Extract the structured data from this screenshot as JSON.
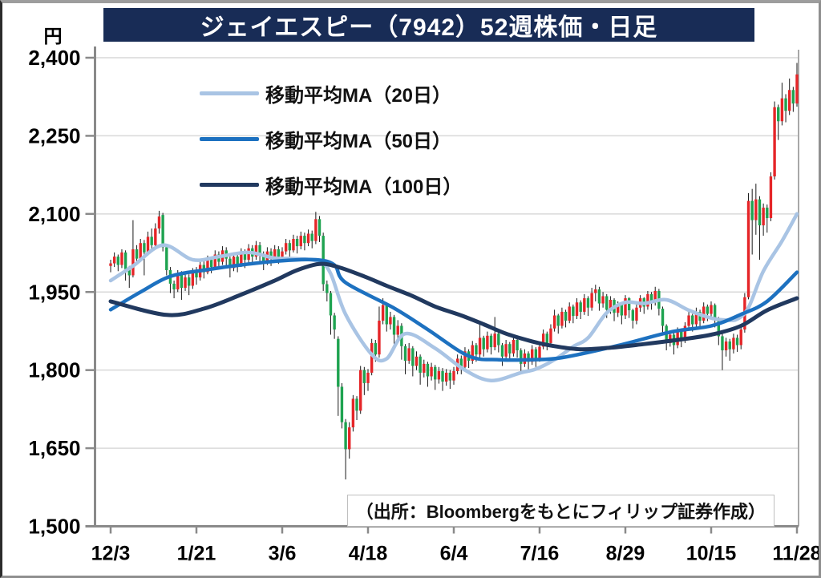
{
  "title": "ジェイエスピー（7942）52週株価・日足",
  "y_axis": {
    "unit": "円",
    "ticks": [
      "2,400",
      "2,250",
      "2,100",
      "1,950",
      "1,800",
      "1,650",
      "1,500"
    ],
    "tick_values": [
      2400,
      2250,
      2100,
      1950,
      1800,
      1650,
      1500
    ]
  },
  "x_axis": {
    "tick_labels": [
      "12/3",
      "1/21",
      "3/6",
      "4/18",
      "6/4",
      "7/16",
      "8/29",
      "10/15",
      "11/28"
    ]
  },
  "source": "（出所：Bloombergをもとにフィリップ証券作成）",
  "colors": {
    "title_bg": "#182c56",
    "candle_up": "#e52528",
    "candle_down": "#1ea350",
    "wick": "#1a1a1a",
    "grid": "#d9d9d9",
    "axis": "#8a8a8a",
    "tick_text": "#000000"
  },
  "chart_data": {
    "type": "candlestick",
    "title": "ジェイエスピー（7942）52週株価・日足",
    "ylabel": "円",
    "ylim": [
      1500,
      2400
    ],
    "grid": true,
    "legend_position": "top-left",
    "x_tick_labels": [
      "12/3",
      "1/21",
      "3/6",
      "4/18",
      "6/4",
      "7/16",
      "8/29",
      "10/15",
      "11/28"
    ],
    "x_tick_day_indices": [
      0,
      23,
      46,
      69,
      92,
      115,
      138,
      161,
      184
    ],
    "candle_convention": "red = up (yang), green = down (yin)",
    "candles_format": [
      "open",
      "close",
      "low",
      "high"
    ],
    "candles": [
      [
        2000,
        2005,
        1988,
        2012
      ],
      [
        2005,
        2018,
        1998,
        2026
      ],
      [
        2018,
        2002,
        1990,
        2022
      ],
      [
        2002,
        2026,
        1996,
        2032
      ],
      [
        2026,
        1994,
        1972,
        2030
      ],
      [
        1994,
        1982,
        1958,
        2000
      ],
      [
        1982,
        2032,
        1978,
        2088
      ],
      [
        2032,
        2014,
        2002,
        2040
      ],
      [
        2014,
        2044,
        2008,
        2052
      ],
      [
        2044,
        2026,
        1982,
        2050
      ],
      [
        2026,
        2056,
        2020,
        2066
      ],
      [
        2056,
        2040,
        2028,
        2072
      ],
      [
        2040,
        2072,
        2034,
        2082
      ],
      [
        2072,
        2095,
        2062,
        2106
      ],
      [
        2098,
        2036,
        2028,
        2102
      ],
      [
        2036,
        1992,
        1982,
        2042
      ],
      [
        1992,
        1966,
        1948,
        1998
      ],
      [
        1966,
        1955,
        1938,
        1972
      ],
      [
        1955,
        1985,
        1950,
        1992
      ],
      [
        1985,
        1958,
        1935,
        1990
      ],
      [
        1958,
        1978,
        1952,
        1986
      ],
      [
        1978,
        1962,
        1944,
        1984
      ],
      [
        1962,
        1990,
        1956,
        1996
      ],
      [
        1990,
        1978,
        1964,
        1998
      ],
      [
        1978,
        2002,
        1972,
        2008
      ],
      [
        2002,
        1988,
        1976,
        2010
      ],
      [
        1988,
        2012,
        1984,
        2020
      ],
      [
        2012,
        1998,
        1986,
        2018
      ],
      [
        1998,
        2022,
        1992,
        2030
      ],
      [
        2022,
        2008,
        1994,
        2028
      ],
      [
        2008,
        2030,
        2002,
        2038
      ],
      [
        2030,
        2014,
        2000,
        2036
      ],
      [
        2014,
        1996,
        1978,
        2018
      ],
      [
        1996,
        2018,
        1990,
        2026
      ],
      [
        2018,
        2004,
        1988,
        2022
      ],
      [
        2004,
        2026,
        1998,
        2034
      ],
      [
        2026,
        2012,
        1996,
        2032
      ],
      [
        2012,
        2034,
        2006,
        2042
      ],
      [
        2034,
        2018,
        2004,
        2040
      ],
      [
        2018,
        2040,
        2012,
        2048
      ],
      [
        2040,
        2022,
        2008,
        2046
      ],
      [
        2022,
        2008,
        1992,
        2028
      ],
      [
        2008,
        2028,
        2002,
        2036
      ],
      [
        2028,
        2014,
        2000,
        2034
      ],
      [
        2014,
        2032,
        2008,
        2040
      ],
      [
        2032,
        2018,
        2004,
        2038
      ],
      [
        2018,
        2028,
        2010,
        2036
      ],
      [
        2028,
        2044,
        2022,
        2052
      ],
      [
        2044,
        2030,
        2018,
        2050
      ],
      [
        2030,
        2052,
        2026,
        2060
      ],
      [
        2052,
        2038,
        2024,
        2058
      ],
      [
        2038,
        2058,
        2032,
        2066
      ],
      [
        2058,
        2044,
        2030,
        2064
      ],
      [
        2044,
        2062,
        2038,
        2070
      ],
      [
        2062,
        2048,
        2034,
        2068
      ],
      [
        2048,
        2090,
        2042,
        2104
      ],
      [
        2090,
        2058,
        2046,
        2096
      ],
      [
        2058,
        1965,
        1952,
        2064
      ],
      [
        1965,
        1948,
        1932,
        1972
      ],
      [
        1948,
        1905,
        1868,
        1952
      ],
      [
        1905,
        1878,
        1860,
        1910
      ],
      [
        1860,
        1768,
        1712,
        1865
      ],
      [
        1768,
        1700,
        1688,
        1775
      ],
      [
        1700,
        1648,
        1590,
        1706
      ],
      [
        1648,
        1690,
        1630,
        1700
      ],
      [
        1690,
        1745,
        1682,
        1752
      ],
      [
        1745,
        1722,
        1704,
        1750
      ],
      [
        1722,
        1800,
        1716,
        1808
      ],
      [
        1800,
        1775,
        1752,
        1806
      ],
      [
        1775,
        1795,
        1760,
        1802
      ],
      [
        1795,
        1852,
        1790,
        1860
      ],
      [
        1852,
        1830,
        1816,
        1858
      ],
      [
        1830,
        1895,
        1824,
        1922
      ],
      [
        1895,
        1925,
        1888,
        1938
      ],
      [
        1925,
        1888,
        1874,
        1930
      ],
      [
        1888,
        1902,
        1878,
        1912
      ],
      [
        1902,
        1868,
        1848,
        1906
      ],
      [
        1868,
        1885,
        1858,
        1896
      ],
      [
        1885,
        1846,
        1820,
        1890
      ],
      [
        1846,
        1818,
        1792,
        1850
      ],
      [
        1818,
        1842,
        1812,
        1852
      ],
      [
        1842,
        1808,
        1788,
        1846
      ],
      [
        1808,
        1826,
        1800,
        1836
      ],
      [
        1826,
        1795,
        1772,
        1830
      ],
      [
        1795,
        1812,
        1786,
        1820
      ],
      [
        1812,
        1788,
        1768,
        1816
      ],
      [
        1788,
        1806,
        1780,
        1814
      ],
      [
        1806,
        1782,
        1762,
        1810
      ],
      [
        1782,
        1798,
        1774,
        1806
      ],
      [
        1798,
        1778,
        1760,
        1804
      ],
      [
        1778,
        1795,
        1770,
        1802
      ],
      [
        1795,
        1780,
        1764,
        1800
      ],
      [
        1780,
        1798,
        1772,
        1806
      ],
      [
        1798,
        1822,
        1792,
        1830
      ],
      [
        1822,
        1806,
        1792,
        1828
      ],
      [
        1806,
        1836,
        1800,
        1844
      ],
      [
        1836,
        1818,
        1804,
        1840
      ],
      [
        1818,
        1848,
        1812,
        1856
      ],
      [
        1848,
        1830,
        1816,
        1852
      ],
      [
        1830,
        1862,
        1824,
        1890
      ],
      [
        1862,
        1840,
        1826,
        1866
      ],
      [
        1840,
        1866,
        1834,
        1874
      ],
      [
        1866,
        1844,
        1830,
        1870
      ],
      [
        1844,
        1870,
        1838,
        1902
      ],
      [
        1870,
        1848,
        1834,
        1874
      ],
      [
        1848,
        1826,
        1808,
        1852
      ],
      [
        1826,
        1850,
        1820,
        1858
      ],
      [
        1850,
        1832,
        1818,
        1854
      ],
      [
        1832,
        1858,
        1826,
        1866
      ],
      [
        1858,
        1838,
        1824,
        1862
      ],
      [
        1838,
        1812,
        1796,
        1842
      ],
      [
        1812,
        1832,
        1806,
        1840
      ],
      [
        1832,
        1816,
        1800,
        1836
      ],
      [
        1816,
        1840,
        1810,
        1848
      ],
      [
        1840,
        1822,
        1806,
        1844
      ],
      [
        1822,
        1845,
        1816,
        1852
      ],
      [
        1845,
        1870,
        1840,
        1878
      ],
      [
        1870,
        1852,
        1838,
        1874
      ],
      [
        1852,
        1880,
        1846,
        1888
      ],
      [
        1880,
        1905,
        1874,
        1916
      ],
      [
        1905,
        1885,
        1870,
        1908
      ],
      [
        1885,
        1912,
        1880,
        1920
      ],
      [
        1912,
        1895,
        1882,
        1916
      ],
      [
        1895,
        1922,
        1890,
        1930
      ],
      [
        1922,
        1904,
        1890,
        1926
      ],
      [
        1904,
        1930,
        1898,
        1938
      ],
      [
        1930,
        1912,
        1898,
        1934
      ],
      [
        1912,
        1938,
        1906,
        1946
      ],
      [
        1938,
        1920,
        1904,
        1942
      ],
      [
        1920,
        1948,
        1914,
        1958
      ],
      [
        1948,
        1955,
        1932,
        1964
      ],
      [
        1955,
        1928,
        1914,
        1960
      ],
      [
        1928,
        1942,
        1920,
        1950
      ],
      [
        1942,
        1916,
        1900,
        1946
      ],
      [
        1916,
        1935,
        1908,
        1942
      ],
      [
        1935,
        1910,
        1894,
        1938
      ],
      [
        1910,
        1925,
        1902,
        1932
      ],
      [
        1925,
        1905,
        1888,
        1928
      ],
      [
        1905,
        1938,
        1898,
        1944
      ],
      [
        1938,
        1915,
        1900,
        1940
      ],
      [
        1915,
        1895,
        1880,
        1918
      ],
      [
        1895,
        1920,
        1888,
        1926
      ],
      [
        1920,
        1938,
        1912,
        1944
      ],
      [
        1938,
        1922,
        1908,
        1940
      ],
      [
        1922,
        1946,
        1916,
        1952
      ],
      [
        1946,
        1930,
        1916,
        1950
      ],
      [
        1930,
        1952,
        1924,
        1960
      ],
      [
        1952,
        1918,
        1905,
        1956
      ],
      [
        1918,
        1885,
        1868,
        1922
      ],
      [
        1885,
        1852,
        1838,
        1888
      ],
      [
        1852,
        1868,
        1845,
        1876
      ],
      [
        1868,
        1848,
        1830,
        1872
      ],
      [
        1848,
        1875,
        1842,
        1882
      ],
      [
        1875,
        1858,
        1844,
        1880
      ],
      [
        1858,
        1885,
        1852,
        1892
      ],
      [
        1885,
        1905,
        1878,
        1912
      ],
      [
        1905,
        1888,
        1874,
        1908
      ],
      [
        1888,
        1912,
        1882,
        1920
      ],
      [
        1912,
        1895,
        1880,
        1916
      ],
      [
        1895,
        1922,
        1890,
        1930
      ],
      [
        1922,
        1908,
        1894,
        1926
      ],
      [
        1908,
        1925,
        1900,
        1932
      ],
      [
        1925,
        1898,
        1882,
        1928
      ],
      [
        1898,
        1865,
        1848,
        1902
      ],
      [
        1865,
        1838,
        1800,
        1870
      ],
      [
        1838,
        1855,
        1826,
        1862
      ],
      [
        1855,
        1840,
        1818,
        1860
      ],
      [
        1840,
        1862,
        1832,
        1870
      ],
      [
        1862,
        1848,
        1835,
        1868
      ],
      [
        1848,
        1878,
        1840,
        1884
      ],
      [
        1878,
        1940,
        1872,
        1948
      ],
      [
        1940,
        2125,
        1936,
        2140
      ],
      [
        2125,
        2088,
        2022,
        2148
      ],
      [
        2088,
        2128,
        2060,
        2158
      ],
      [
        2128,
        2078,
        2012,
        2134
      ],
      [
        2078,
        2112,
        2058,
        2120
      ],
      [
        2112,
        2092,
        2064,
        2118
      ],
      [
        2092,
        2172,
        2086,
        2180
      ],
      [
        2172,
        2305,
        2166,
        2316
      ],
      [
        2305,
        2278,
        2242,
        2310
      ],
      [
        2278,
        2322,
        2270,
        2352
      ],
      [
        2322,
        2298,
        2276,
        2330
      ],
      [
        2298,
        2338,
        2290,
        2360
      ],
      [
        2338,
        2312,
        2296,
        2344
      ],
      [
        2312,
        2368,
        2306,
        2390
      ]
    ],
    "series": [
      {
        "name": "移動平均MA（20日）",
        "color": "#a9c4e4",
        "width": 4.5,
        "anchors": [
          [
            0,
            1972
          ],
          [
            6,
            2000
          ],
          [
            14,
            2040
          ],
          [
            22,
            2012
          ],
          [
            29,
            2018
          ],
          [
            37,
            2026
          ],
          [
            44,
            2015
          ],
          [
            50,
            2014
          ],
          [
            56,
            2008
          ],
          [
            59,
            1985
          ],
          [
            63,
            1907
          ],
          [
            70,
            1830
          ],
          [
            74,
            1822
          ],
          [
            79,
            1870
          ],
          [
            87,
            1842
          ],
          [
            95,
            1800
          ],
          [
            102,
            1780
          ],
          [
            110,
            1795
          ],
          [
            114,
            1802
          ],
          [
            119,
            1820
          ],
          [
            124,
            1845
          ],
          [
            128,
            1862
          ],
          [
            133,
            1910
          ],
          [
            138,
            1930
          ],
          [
            143,
            1928
          ],
          [
            149,
            1935
          ],
          [
            155,
            1915
          ],
          [
            161,
            1900
          ],
          [
            165,
            1896
          ],
          [
            168,
            1898
          ],
          [
            171,
            1920
          ],
          [
            175,
            1990
          ],
          [
            180,
            2048
          ],
          [
            184,
            2100
          ]
        ]
      },
      {
        "name": "移動平均MA（50日）",
        "color": "#1d71c0",
        "width": 4.5,
        "anchors": [
          [
            0,
            1916
          ],
          [
            8,
            1950
          ],
          [
            16,
            1980
          ],
          [
            25,
            1992
          ],
          [
            35,
            2002
          ],
          [
            46,
            2010
          ],
          [
            55,
            2012
          ],
          [
            60,
            2002
          ],
          [
            63,
            1968
          ],
          [
            76,
            1919
          ],
          [
            85,
            1878
          ],
          [
            96,
            1827
          ],
          [
            104,
            1820
          ],
          [
            113,
            1820
          ],
          [
            121,
            1824
          ],
          [
            136,
            1847
          ],
          [
            150,
            1873
          ],
          [
            161,
            1885
          ],
          [
            169,
            1907
          ],
          [
            176,
            1932
          ],
          [
            184,
            1988
          ]
        ]
      },
      {
        "name": "移動平均MA（100日）",
        "color": "#21395f",
        "width": 5,
        "anchors": [
          [
            0,
            1932
          ],
          [
            15,
            1906
          ],
          [
            25,
            1918
          ],
          [
            35,
            1945
          ],
          [
            44,
            1972
          ],
          [
            50,
            1992
          ],
          [
            56,
            2004
          ],
          [
            61,
            1998
          ],
          [
            68,
            1980
          ],
          [
            74,
            1962
          ],
          [
            81,
            1942
          ],
          [
            87,
            1922
          ],
          [
            94,
            1905
          ],
          [
            100,
            1888
          ],
          [
            106,
            1870
          ],
          [
            113,
            1855
          ],
          [
            119,
            1846
          ],
          [
            126,
            1840
          ],
          [
            134,
            1843
          ],
          [
            143,
            1850
          ],
          [
            152,
            1858
          ],
          [
            161,
            1868
          ],
          [
            169,
            1885
          ],
          [
            176,
            1915
          ],
          [
            184,
            1938
          ]
        ]
      }
    ]
  }
}
